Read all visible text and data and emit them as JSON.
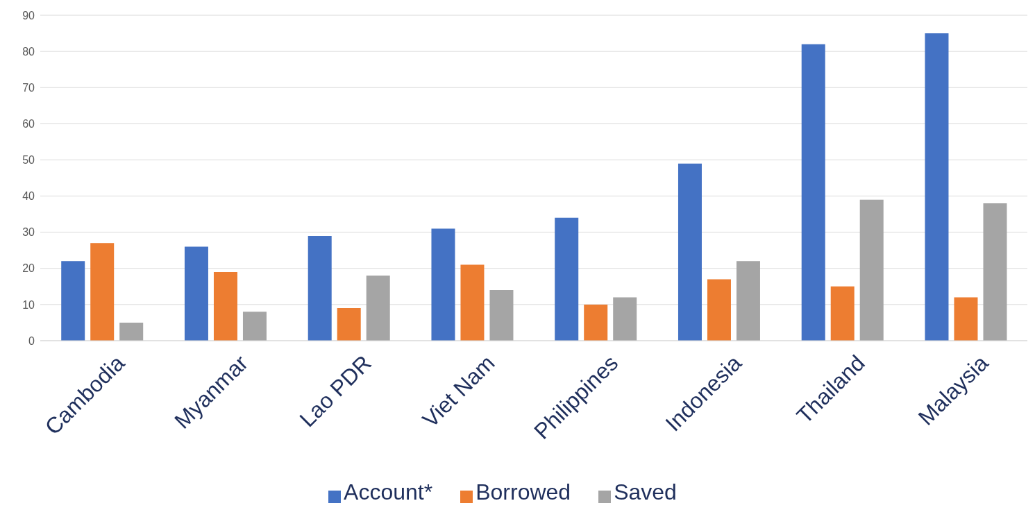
{
  "chart_data": {
    "type": "bar",
    "categories": [
      "Cambodia",
      "Myanmar",
      "Lao PDR",
      "Viet Nam",
      "Philippines",
      "Indonesia",
      "Thailand",
      "Malaysia"
    ],
    "series": [
      {
        "name": "Account*",
        "color": "#4472c4",
        "values": [
          22,
          26,
          29,
          31,
          34,
          49,
          82,
          85
        ]
      },
      {
        "name": "Borrowed",
        "color": "#ed7d31",
        "values": [
          27,
          19,
          9,
          21,
          10,
          17,
          15,
          12
        ]
      },
      {
        "name": "Saved",
        "color": "#a5a5a5",
        "values": [
          5,
          8,
          18,
          14,
          12,
          22,
          39,
          38
        ]
      }
    ],
    "ylim": [
      0,
      90
    ],
    "yticks": [
      0,
      10,
      20,
      30,
      40,
      50,
      60,
      70,
      80,
      90
    ],
    "grid": "y",
    "legend": "bottom"
  }
}
